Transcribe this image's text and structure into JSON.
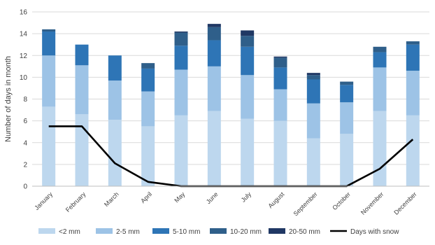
{
  "chart_data": {
    "type": "bar",
    "stacked": true,
    "title": "",
    "xlabel": "",
    "ylabel": "Number of days in month",
    "ylim": [
      0,
      16
    ],
    "yticks": [
      0,
      2,
      4,
      6,
      8,
      10,
      12,
      14,
      16
    ],
    "grid": true,
    "legend_position": "bottom",
    "categories": [
      "January",
      "February",
      "March",
      "April",
      "May",
      "June",
      "July",
      "August",
      "September",
      "October",
      "November",
      "December"
    ],
    "series": [
      {
        "name": "<2 mm",
        "color": "#bdd7ee",
        "values": [
          7.3,
          6.6,
          6.1,
          5.5,
          6.5,
          6.9,
          6.2,
          6.0,
          4.4,
          4.8,
          6.9,
          6.5
        ]
      },
      {
        "name": "2-5 mm",
        "color": "#9dc3e6",
        "values": [
          4.7,
          4.5,
          3.6,
          3.2,
          4.2,
          4.1,
          4.0,
          2.9,
          3.2,
          2.9,
          4.0,
          4.1
        ]
      },
      {
        "name": "5-10 mm",
        "color": "#2e75b6",
        "values": [
          2.2,
          1.9,
          2.3,
          2.1,
          2.2,
          2.4,
          2.6,
          2.0,
          2.2,
          1.6,
          1.4,
          2.4
        ]
      },
      {
        "name": "10-20 mm",
        "color": "#2f5f8a",
        "values": [
          0.2,
          0.0,
          0.0,
          0.5,
          1.2,
          1.2,
          1.0,
          0.9,
          0.4,
          0.3,
          0.5,
          0.3
        ]
      },
      {
        "name": "20-50 mm",
        "color": "#203864",
        "values": [
          0.0,
          0.0,
          0.0,
          0.0,
          0.1,
          0.3,
          0.5,
          0.1,
          0.2,
          0.0,
          0.0,
          0.0
        ]
      }
    ],
    "line_series": {
      "name": "Days with snow",
      "color": "#000000",
      "values": [
        5.5,
        5.5,
        2.1,
        0.4,
        0.0,
        0.0,
        0.0,
        0.0,
        0.0,
        0.0,
        1.6,
        4.3
      ]
    }
  }
}
